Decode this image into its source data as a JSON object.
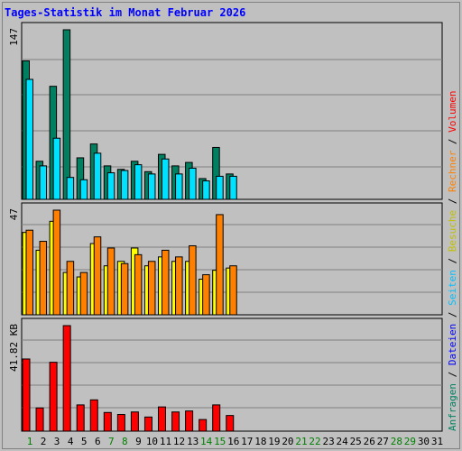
{
  "title": "Tages-Statistik im Monat Februar 2026",
  "colors": {
    "anfragen": "#008060",
    "dateien": "#00e0ff",
    "seiten": "#00e0ff",
    "besuche": "#ffff00",
    "rechner": "#ff8000",
    "volumen": "#ff0000",
    "weekend_day": "#008000",
    "weekday": "#000000"
  },
  "right_label": {
    "separator": " / ",
    "items": [
      {
        "text": "Anfragen",
        "color": "#008060"
      },
      {
        "text": "Dateien",
        "color": "#0000ff"
      },
      {
        "text": "Seiten",
        "color": "#00c0ff"
      },
      {
        "text": "Besuche",
        "color": "#c0c000"
      },
      {
        "text": "Rechner",
        "color": "#ff8000"
      },
      {
        "text": "Volumen",
        "color": "#ff0000"
      }
    ]
  },
  "chart_data": {
    "type": "bar",
    "x": [
      "1",
      "2",
      "3",
      "4",
      "5",
      "6",
      "7",
      "8",
      "9",
      "10",
      "11",
      "12",
      "13",
      "14",
      "15",
      "16",
      "17",
      "18",
      "19",
      "20",
      "21",
      "22",
      "23",
      "24",
      "25",
      "26",
      "27",
      "28",
      "29",
      "30",
      "31"
    ],
    "weekend_days": [
      "1",
      "7",
      "8",
      "14",
      "15",
      "21",
      "22",
      "28",
      "29"
    ],
    "panels": [
      {
        "id": "requests",
        "ymax_label": "147",
        "ymax": 147,
        "series": [
          {
            "name": "Anfragen",
            "color": "#008060",
            "values": [
              120,
              33,
              98,
              147,
              36,
              48,
              29,
              26,
              33,
              24,
              39,
              29,
              32,
              18,
              45,
              22
            ]
          },
          {
            "name": "Dateien",
            "color": "#00e0ff",
            "values": [
              104,
              29,
              53,
              19,
              17,
              40,
              23,
              25,
              30,
              22,
              35,
              22,
              27,
              16,
              20,
              20
            ]
          }
        ]
      },
      {
        "id": "visits",
        "ymax_label": "47",
        "ymax": 47,
        "series": [
          {
            "name": "Besuche",
            "color": "#ffff00",
            "values": [
              37,
              29,
              42,
              19,
              17,
              32,
              22,
              24,
              30,
              22,
              26,
              24,
              24,
              16,
              20,
              21
            ]
          },
          {
            "name": "Rechner",
            "color": "#ff8000",
            "values": [
              38,
              33,
              47,
              24,
              19,
              35,
              30,
              23,
              27,
              24,
              29,
              26,
              31,
              18,
              45,
              22
            ]
          }
        ]
      },
      {
        "id": "volume",
        "ymax_label": "41.82 KB",
        "ymax": 41.82,
        "series": [
          {
            "name": "Volumen",
            "color": "#ff0000",
            "values": [
              28.6,
              9.2,
              27.3,
              41.82,
              10.4,
              12.4,
              7.4,
              6.6,
              7.6,
              5.6,
              9.6,
              7.6,
              8.0,
              4.6,
              10.4,
              6.2
            ]
          }
        ]
      }
    ]
  }
}
